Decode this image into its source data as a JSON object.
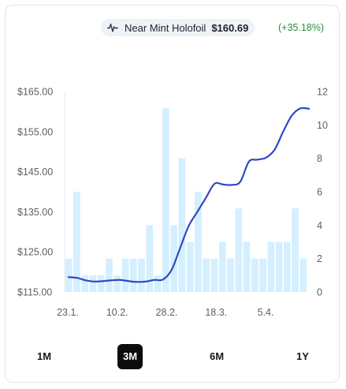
{
  "card": {
    "condition": "Near Mint Holofoil",
    "price": "$160.69",
    "change": "(+35.18%)",
    "change_color": "#2e8b3d",
    "pulse_icon": "activity-icon"
  },
  "chart_data": {
    "type": "bar+line",
    "left_axis": {
      "ticks": [
        "$165.00",
        "$155.00",
        "$145.00",
        "$135.00",
        "$125.00",
        "$115.00"
      ],
      "range": [
        115,
        165
      ]
    },
    "right_axis": {
      "ticks": [
        "12",
        "10",
        "8",
        "6",
        "4",
        "2",
        "0"
      ],
      "range": [
        0,
        12
      ]
    },
    "x_tick_labels": [
      "23.1.",
      "10.2.",
      "28.2.",
      "18.3.",
      "5.4."
    ],
    "volume_bars": [
      2,
      6,
      1,
      1,
      1,
      2,
      1,
      2,
      2,
      2,
      4,
      1,
      11,
      4,
      8,
      3,
      6,
      2,
      2,
      3,
      2,
      5,
      3,
      2,
      2,
      3,
      3,
      3,
      5,
      2
    ],
    "price_series": [
      [
        0,
        118.7
      ],
      [
        1,
        118.5
      ],
      [
        2,
        117.9
      ],
      [
        3,
        117.6
      ],
      [
        4,
        117.7
      ],
      [
        5,
        117.9
      ],
      [
        6,
        118.0
      ],
      [
        7,
        117.7
      ],
      [
        8,
        117.5
      ],
      [
        9,
        117.6
      ],
      [
        10,
        118.0
      ],
      [
        11,
        118.1
      ],
      [
        12,
        120.5
      ],
      [
        13,
        126.0
      ],
      [
        14,
        131.5
      ],
      [
        15,
        135.0
      ],
      [
        16,
        138.5
      ],
      [
        17,
        142.0
      ],
      [
        18,
        141.8
      ],
      [
        19,
        141.7
      ],
      [
        20,
        142.5
      ],
      [
        21,
        147.5
      ],
      [
        22,
        148.0
      ],
      [
        23,
        148.5
      ],
      [
        24,
        150.5
      ],
      [
        25,
        155.0
      ],
      [
        26,
        159.0
      ],
      [
        27,
        160.8
      ],
      [
        28,
        160.7
      ]
    ],
    "bar_color": "#d4efff",
    "line_color": "#2f49c4"
  },
  "ranges": {
    "items": [
      "1M",
      "3M",
      "6M",
      "1Y"
    ],
    "active": "3M"
  }
}
